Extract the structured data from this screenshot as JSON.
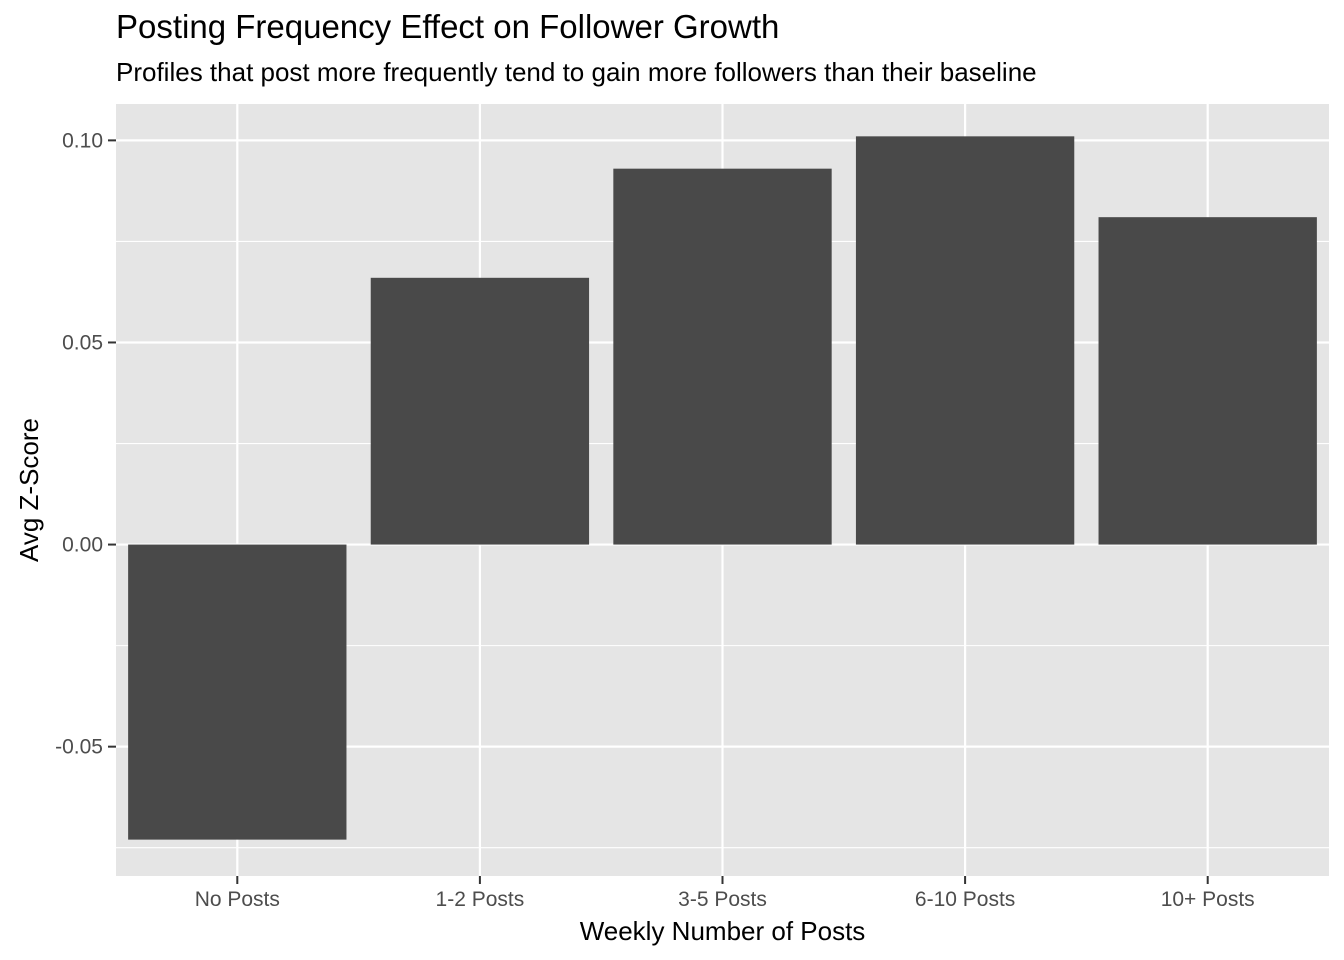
{
  "chart_data": {
    "type": "bar",
    "title": "Posting Frequency Effect on Follower Growth",
    "subtitle": "Profiles that post more frequently tend to gain more followers than their baseline",
    "xlabel": "Weekly Number of Posts",
    "ylabel": "Avg Z-Score",
    "categories": [
      "No Posts",
      "1-2 Posts",
      "3-5 Posts",
      "6-10 Posts",
      "10+ Posts"
    ],
    "values": [
      -0.073,
      0.066,
      0.093,
      0.101,
      0.081
    ],
    "ylim": [
      -0.082,
      0.109
    ],
    "y_ticks": [
      -0.05,
      0.0,
      0.05,
      0.1
    ],
    "y_tick_labels": [
      "-0.05",
      "0.00",
      "0.05",
      "0.10"
    ],
    "grid": true,
    "colors": {
      "bar": "#494949",
      "panel_background": "#e5e5e5",
      "grid_line": "#ffffff",
      "axis_text": "#4d4d4d",
      "tick_mark": "#333333"
    }
  }
}
